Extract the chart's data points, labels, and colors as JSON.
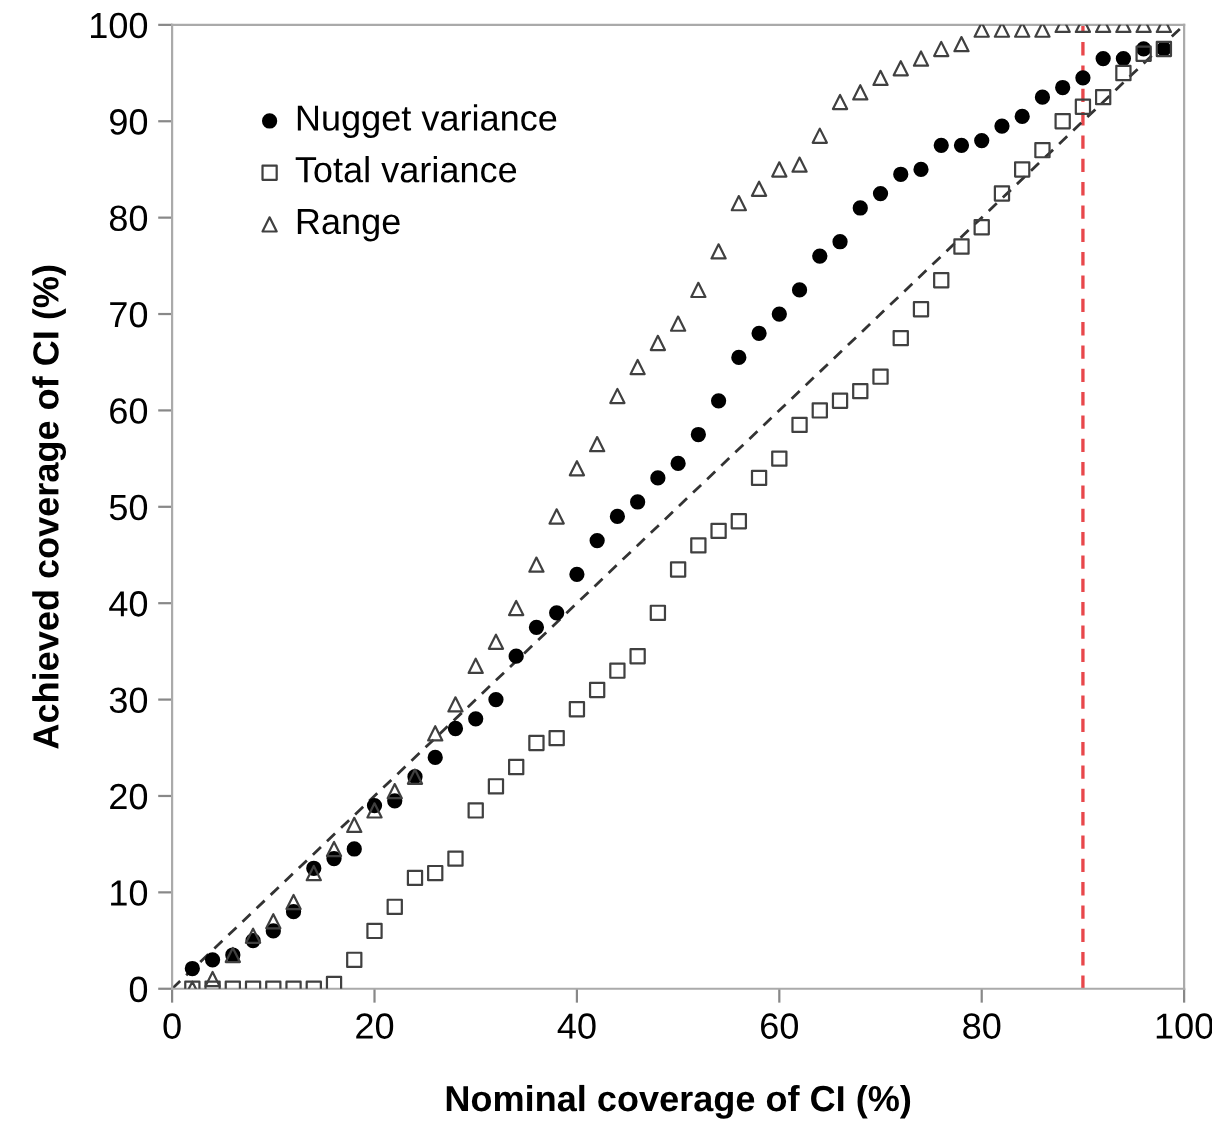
{
  "chart_data": {
    "type": "scatter",
    "xlabel": "Nominal coverage of CI (%)",
    "ylabel": "Achieved coverage of CI (%)",
    "x": [
      2,
      4,
      6,
      8,
      10,
      12,
      14,
      16,
      18,
      20,
      22,
      24,
      26,
      28,
      30,
      32,
      34,
      36,
      38,
      40,
      42,
      44,
      46,
      48,
      50,
      52,
      54,
      56,
      58,
      60,
      62,
      64,
      66,
      68,
      70,
      72,
      74,
      76,
      78,
      80,
      82,
      84,
      86,
      88,
      90,
      92,
      94,
      96,
      98
    ],
    "series": [
      {
        "name": "Nugget variance",
        "color": "#000000",
        "marker": "circle",
        "values": [
          2.1,
          3,
          3.5,
          5,
          6,
          8,
          12.5,
          13.5,
          14.5,
          19,
          19.5,
          22,
          24,
          27,
          28,
          30,
          34.5,
          37.5,
          39,
          43,
          46.5,
          49,
          50.5,
          53,
          54.5,
          57.5,
          61,
          65.5,
          68,
          70,
          72.5,
          76,
          77.5,
          81,
          82.5,
          84.5,
          85,
          87.5,
          87.5,
          88,
          89.5,
          90.5,
          92.5,
          93.5,
          94.5,
          96.5,
          96.5,
          97.5,
          97.5
        ]
      },
      {
        "name": "Total variance",
        "color": "#404040",
        "marker": "square",
        "values": [
          0,
          0,
          0,
          0,
          0,
          0,
          0,
          0.5,
          3,
          6,
          8.5,
          11.5,
          12,
          13.5,
          18.5,
          21,
          23,
          25.5,
          26,
          29,
          31,
          33,
          34.5,
          39,
          43.5,
          46,
          47.5,
          48.5,
          53,
          55,
          58.5,
          60,
          61,
          62,
          63.5,
          67.5,
          70.5,
          73.5,
          77,
          79,
          82.5,
          85,
          87,
          90,
          91.5,
          92.5,
          95,
          97,
          97.5
        ]
      },
      {
        "name": "Range",
        "color": "#404040",
        "marker": "triangle",
        "values": [
          0,
          1,
          3.5,
          5.5,
          7,
          9,
          12,
          14.5,
          17,
          18.5,
          20.5,
          22,
          26.5,
          29.5,
          33.5,
          36,
          39.5,
          44,
          49,
          54,
          56.5,
          61.5,
          64.5,
          67,
          69,
          72.5,
          76.5,
          81.5,
          83,
          85,
          85.5,
          88.5,
          92,
          93,
          94.5,
          95.5,
          96.5,
          97.5,
          98,
          99.5,
          99.5,
          99.5,
          99.5,
          100,
          100,
          100,
          100,
          100,
          100
        ]
      },
      {
        "type": "line",
        "color": "#333333",
        "line_style": "dashed",
        "x": [
          0,
          100
        ],
        "values": [
          0,
          100
        ]
      }
    ],
    "ref_lines": [
      {
        "axis": "x",
        "value": 90,
        "color": "#e8474b",
        "line_style": "dashed"
      }
    ],
    "xlim": [
      0,
      100
    ],
    "ylim": [
      0,
      100
    ],
    "xticks": [
      0,
      20,
      40,
      60,
      80,
      100
    ],
    "yticks": [
      0,
      10,
      20,
      30,
      40,
      50,
      60,
      70,
      80,
      90,
      100
    ],
    "grid": false,
    "legend": "top left"
  }
}
